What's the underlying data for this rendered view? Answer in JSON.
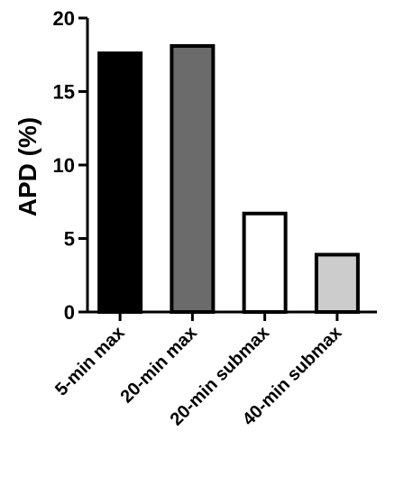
{
  "chart_data": {
    "type": "bar",
    "title": "",
    "xlabel": "",
    "ylabel": "APD (%)",
    "ylim": [
      0,
      20
    ],
    "yticks": [
      0,
      5,
      10,
      15,
      20
    ],
    "categories": [
      "5-min max",
      "20-min max",
      "20-min submax",
      "40-min submax"
    ],
    "values": [
      17.6,
      18.1,
      6.7,
      3.9
    ],
    "bar_colors": [
      "#000000",
      "#6b6b6b",
      "#ffffff",
      "#cccccc"
    ],
    "grid": false,
    "legend": "none"
  }
}
